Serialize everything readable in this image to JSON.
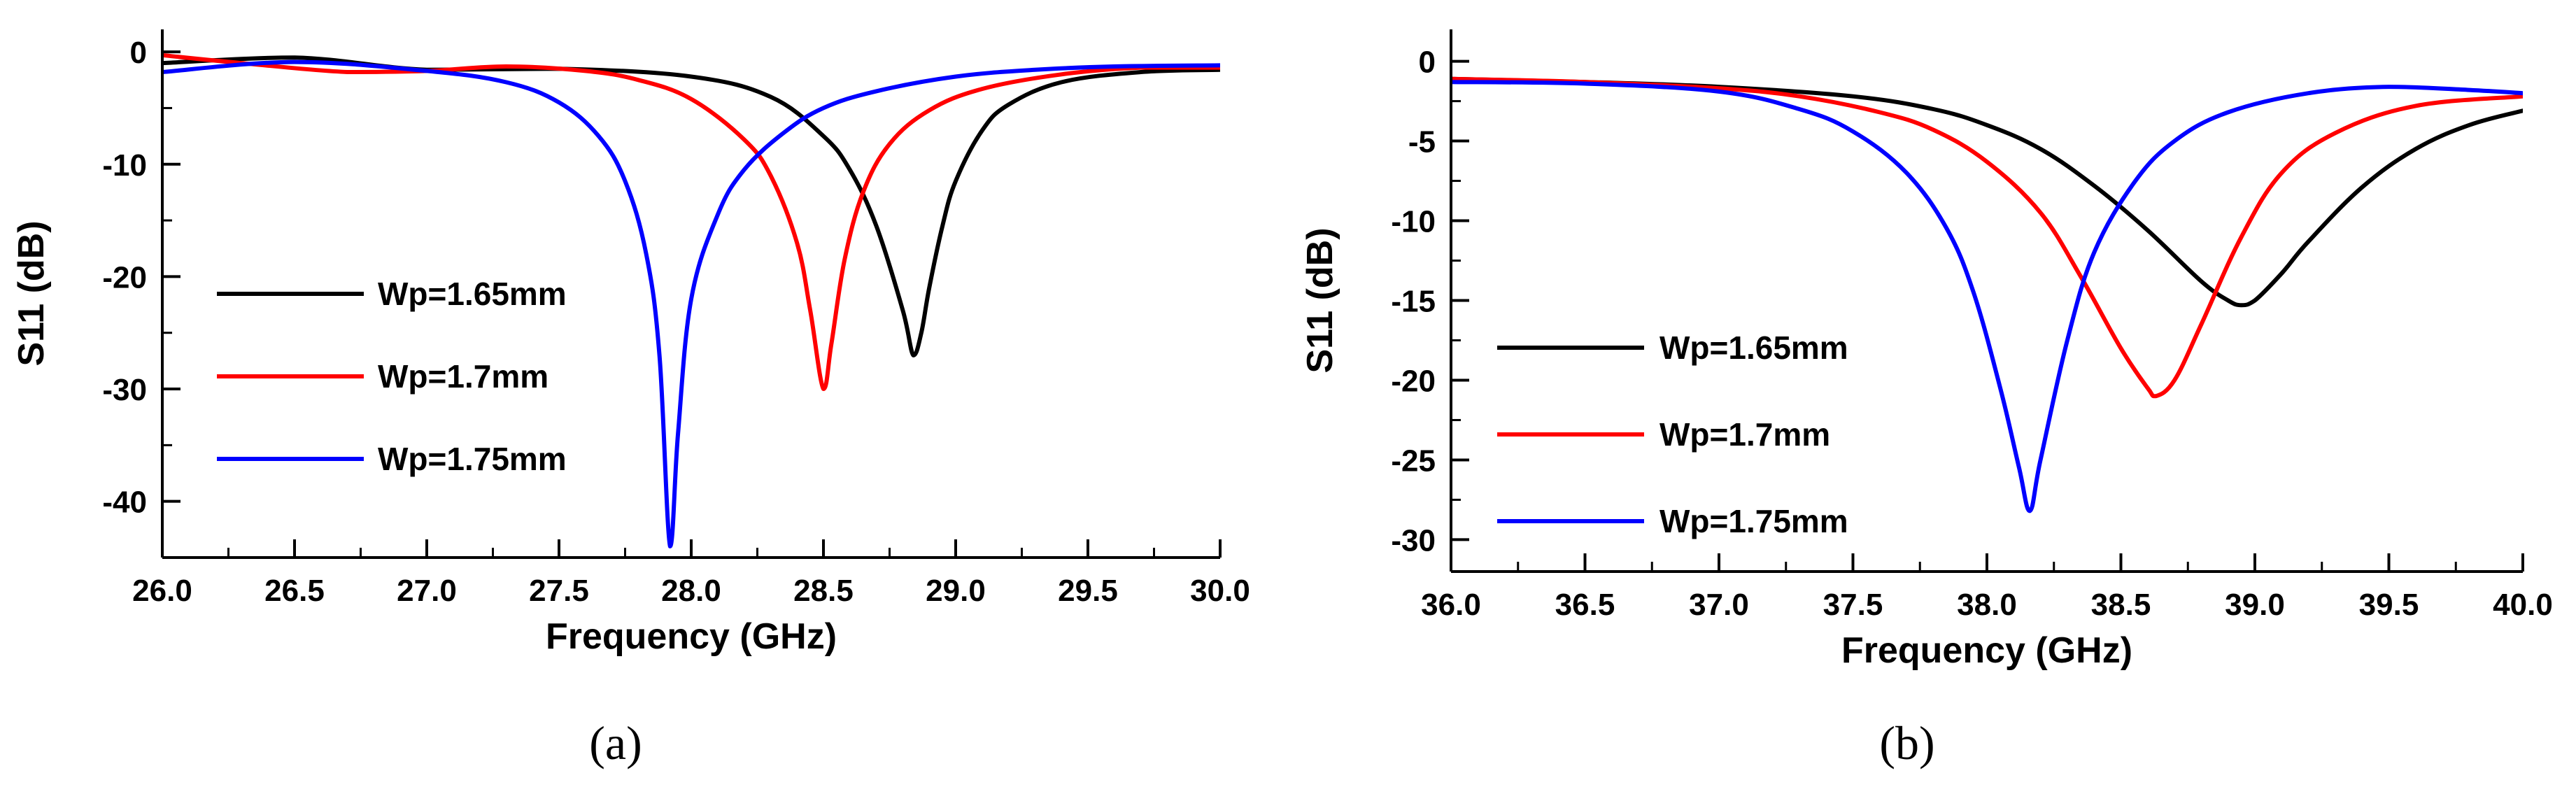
{
  "chart_data": [
    {
      "type": "line",
      "panel": "a",
      "caption": "(a)",
      "xlabel": "Frequency (GHz)",
      "ylabel": "S11 (dB)",
      "xlim": [
        26.0,
        30.0
      ],
      "ylim": [
        -45,
        2
      ],
      "xticks": [
        26.0,
        26.5,
        27.0,
        27.5,
        28.0,
        28.5,
        29.0,
        29.5,
        30.0
      ],
      "xtick_labels": [
        "26.0",
        "26.5",
        "27.0",
        "27.5",
        "28.0",
        "28.5",
        "29.0",
        "29.5",
        "30.0"
      ],
      "yticks": [
        0,
        -10,
        -20,
        -30,
        -40
      ],
      "ytick_labels": [
        "0",
        "-10",
        "-20",
        "-30",
        "-40"
      ],
      "legend_position": "center-left",
      "series": [
        {
          "name": "Wp=1.65mm",
          "color": "#000000",
          "x": [
            26.0,
            26.5,
            27.0,
            27.5,
            28.0,
            28.3,
            28.5,
            28.6,
            28.7,
            28.8,
            28.84,
            28.87,
            28.9,
            28.95,
            29.0,
            29.1,
            29.2,
            29.4,
            29.7,
            30.0
          ],
          "y": [
            -1.0,
            -0.5,
            -1.6,
            -1.5,
            -2.2,
            -4.0,
            -7.5,
            -10.5,
            -15.5,
            -23.0,
            -27.0,
            -25.0,
            -21.0,
            -15.5,
            -11.5,
            -7.0,
            -4.7,
            -2.7,
            -1.8,
            -1.6
          ]
        },
        {
          "name": "Wp=1.7mm",
          "color": "#ff0000",
          "x": [
            26.0,
            26.3,
            26.7,
            27.0,
            27.3,
            27.6,
            27.8,
            28.0,
            28.2,
            28.3,
            28.4,
            28.45,
            28.5,
            28.53,
            28.58,
            28.65,
            28.75,
            28.9,
            29.1,
            29.4,
            29.7,
            30.0
          ],
          "y": [
            -0.3,
            -1.0,
            -1.8,
            -1.7,
            -1.3,
            -1.7,
            -2.5,
            -4.2,
            -7.8,
            -11.0,
            -17.0,
            -23.0,
            -30.0,
            -26.0,
            -18.5,
            -12.5,
            -8.2,
            -5.2,
            -3.3,
            -2.0,
            -1.4,
            -1.4
          ]
        },
        {
          "name": "Wp=1.75mm",
          "color": "#0000ff",
          "x": [
            26.0,
            26.5,
            27.0,
            27.3,
            27.5,
            27.65,
            27.75,
            27.83,
            27.88,
            27.92,
            27.95,
            28.0,
            28.1,
            28.2,
            28.35,
            28.5,
            28.7,
            29.0,
            29.3,
            29.6,
            30.0
          ],
          "y": [
            -1.8,
            -0.9,
            -1.7,
            -2.7,
            -4.5,
            -7.5,
            -11.5,
            -18.0,
            -27.0,
            -44.0,
            -34.0,
            -22.0,
            -14.5,
            -10.5,
            -7.2,
            -5.0,
            -3.5,
            -2.2,
            -1.6,
            -1.3,
            -1.2
          ]
        }
      ]
    },
    {
      "type": "line",
      "panel": "b",
      "caption": "(b)",
      "xlabel": "Frequency (GHz)",
      "ylabel": "S11 (dB)",
      "xlim": [
        36.0,
        40.0
      ],
      "ylim": [
        -32,
        2
      ],
      "xticks": [
        36.0,
        36.5,
        37.0,
        37.5,
        38.0,
        38.5,
        39.0,
        39.5,
        40.0
      ],
      "xtick_labels": [
        "36.0",
        "36.5",
        "37.0",
        "37.5",
        "38.0",
        "38.5",
        "39.0",
        "39.5",
        "40.0"
      ],
      "yticks": [
        0,
        -5,
        -10,
        -15,
        -20,
        -25,
        -30
      ],
      "ytick_labels": [
        "0",
        "-5",
        "-10",
        "-15",
        "-20",
        "-25",
        "-30"
      ],
      "legend_position": "lower-left",
      "series": [
        {
          "name": "Wp=1.65mm",
          "color": "#000000",
          "x": [
            36.0,
            36.5,
            37.0,
            37.5,
            37.8,
            38.0,
            38.2,
            38.4,
            38.6,
            38.8,
            38.9,
            38.95,
            39.0,
            39.1,
            39.2,
            39.4,
            39.6,
            39.8,
            40.0
          ],
          "y": [
            -1.1,
            -1.3,
            -1.6,
            -2.2,
            -3.0,
            -4.0,
            -5.5,
            -7.8,
            -10.6,
            -13.8,
            -15.0,
            -15.3,
            -15.0,
            -13.3,
            -11.3,
            -7.9,
            -5.5,
            -4.0,
            -3.1
          ]
        },
        {
          "name": "Wp=1.7mm",
          "color": "#ff0000",
          "x": [
            36.0,
            36.5,
            37.0,
            37.3,
            37.6,
            37.8,
            38.0,
            38.2,
            38.35,
            38.5,
            38.6,
            38.63,
            38.7,
            38.8,
            38.95,
            39.1,
            39.3,
            39.6,
            40.0
          ],
          "y": [
            -1.1,
            -1.3,
            -1.7,
            -2.2,
            -3.2,
            -4.3,
            -6.3,
            -9.5,
            -13.5,
            -18.0,
            -20.5,
            -21.0,
            -20.0,
            -16.5,
            -11.0,
            -7.0,
            -4.5,
            -2.8,
            -2.2
          ]
        },
        {
          "name": "Wp=1.75mm",
          "color": "#0000ff",
          "x": [
            36.0,
            36.5,
            37.0,
            37.3,
            37.5,
            37.7,
            37.85,
            37.95,
            38.05,
            38.12,
            38.16,
            38.2,
            38.3,
            38.4,
            38.55,
            38.7,
            38.9,
            39.2,
            39.5,
            39.8,
            40.0
          ],
          "y": [
            -1.3,
            -1.4,
            -1.9,
            -3.0,
            -4.4,
            -7.0,
            -10.5,
            -14.5,
            -20.5,
            -25.5,
            -28.2,
            -25.0,
            -17.5,
            -12.0,
            -7.6,
            -5.0,
            -3.2,
            -2.0,
            -1.6,
            -1.8,
            -2.0
          ]
        }
      ]
    }
  ]
}
